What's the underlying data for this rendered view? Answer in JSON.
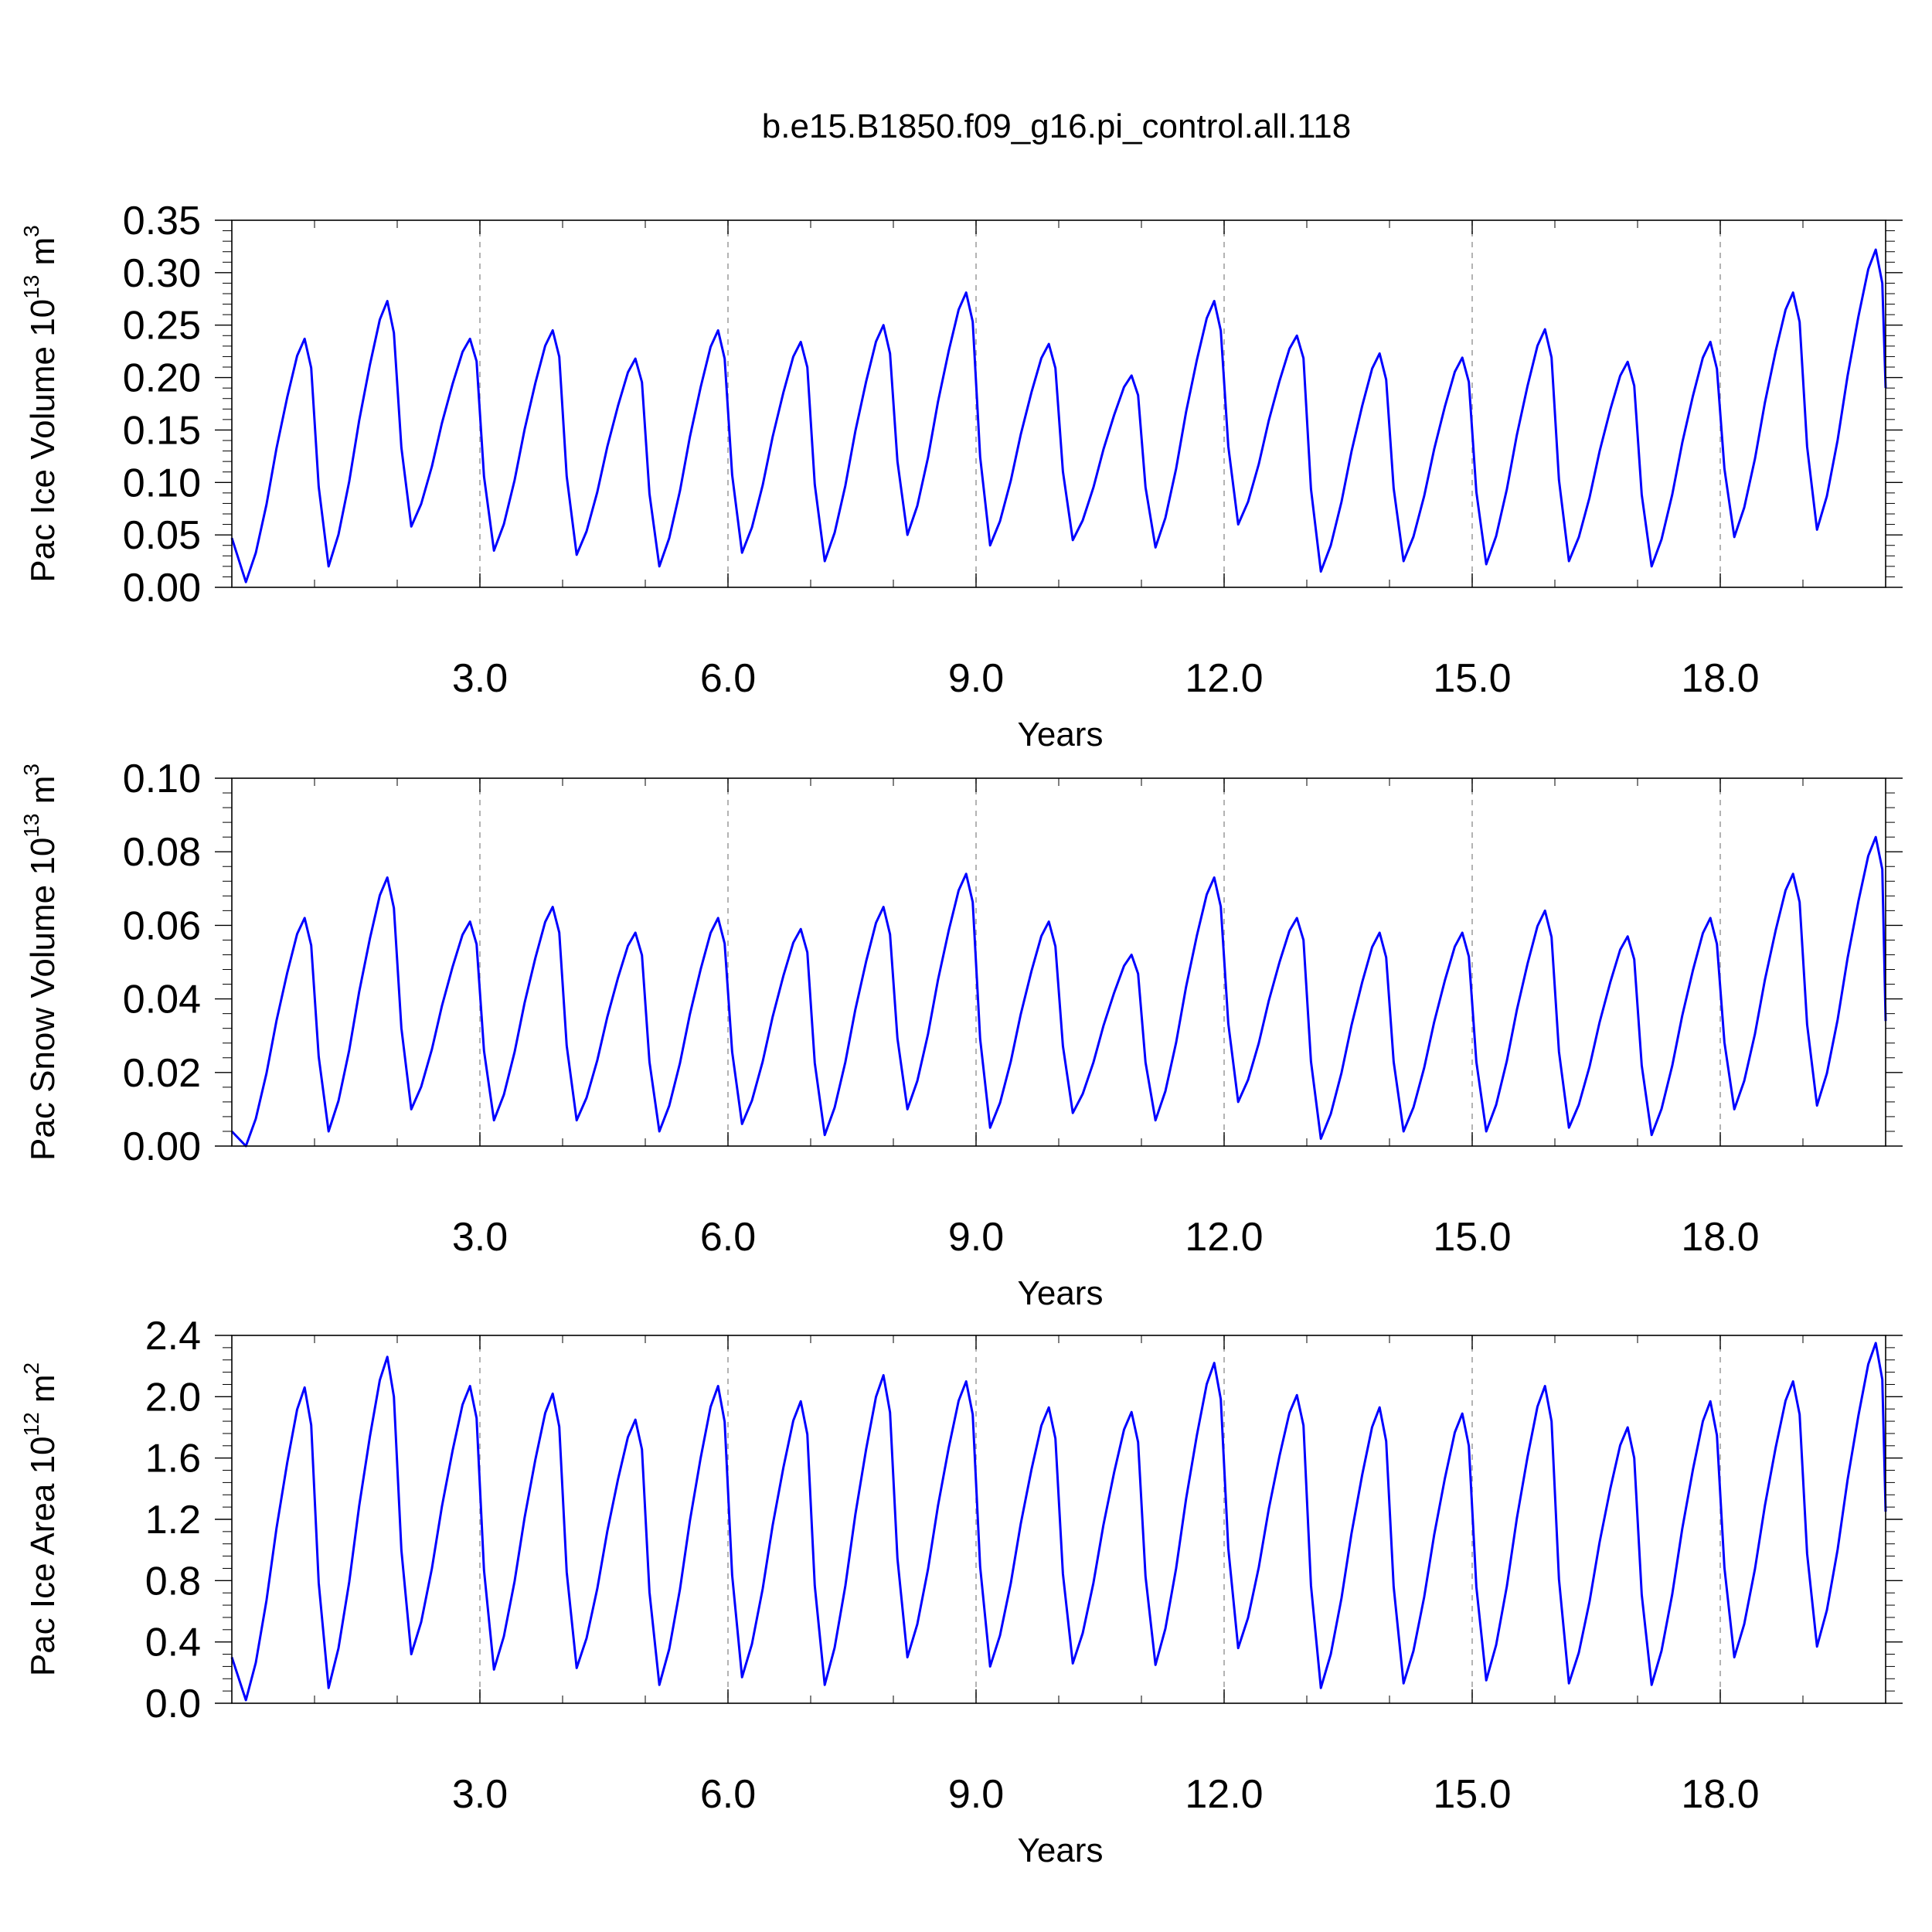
{
  "page_title": "b.e15.B1850.f09_g16.pi_control.all.118",
  "series_color": "#0000ff",
  "chart_data": [
    {
      "type": "line",
      "title": "b.e15.B1850.f09_g16.pi_control.all.118",
      "xlabel": "Years",
      "ylabel": "Pac Ice Volume 10",
      "ylabel_sup": "13",
      "ylabel_unit": " m",
      "ylabel_unit_sup": "3",
      "xlim": [
        0.0,
        20.0
      ],
      "ylim": [
        0.0,
        0.35
      ],
      "xticks": [
        3,
        6,
        9,
        12,
        15,
        18
      ],
      "xtick_labels": [
        "3.0",
        "6.0",
        "9.0",
        "12.0",
        "15.0",
        "18.0"
      ],
      "yticks": [
        0.0,
        0.05,
        0.1,
        0.15,
        0.2,
        0.25,
        0.3,
        0.35
      ],
      "ytick_labels": [
        "0.00",
        "0.05",
        "0.10",
        "0.15",
        "0.20",
        "0.25",
        "0.30",
        "0.35"
      ],
      "grid": "vertical dashed lines at major x ticks",
      "series": [
        {
          "peaks": [
            0.237,
            0.273,
            0.237,
            0.245,
            0.218,
            0.245,
            0.234,
            0.25,
            0.281,
            0.232,
            0.202,
            0.273,
            0.24,
            0.223,
            0.219,
            0.246,
            0.215,
            0.234,
            0.281,
            0.322
          ],
          "troughs": [
            0.005,
            0.02,
            0.058,
            0.035,
            0.031,
            0.02,
            0.033,
            0.025,
            0.05,
            0.04,
            0.045,
            0.038,
            0.06,
            0.015,
            0.025,
            0.022,
            0.025,
            0.02,
            0.048,
            0.055
          ],
          "start": 0.047,
          "end": 0.19
        }
      ]
    },
    {
      "type": "line",
      "xlabel": "Years",
      "ylabel": "Pac Snow Volume 10",
      "ylabel_sup": "13",
      "ylabel_unit": " m",
      "ylabel_unit_sup": "3",
      "xlim": [
        0.0,
        20.0
      ],
      "ylim": [
        0.0,
        0.1
      ],
      "xticks": [
        3,
        6,
        9,
        12,
        15,
        18
      ],
      "xtick_labels": [
        "3.0",
        "6.0",
        "9.0",
        "12.0",
        "15.0",
        "18.0"
      ],
      "yticks": [
        0.0,
        0.02,
        0.04,
        0.06,
        0.08,
        0.1
      ],
      "ytick_labels": [
        "0.00",
        "0.02",
        "0.04",
        "0.06",
        "0.08",
        "0.10"
      ],
      "grid": "vertical dashed lines at major x ticks",
      "series": [
        {
          "peaks": [
            0.062,
            0.073,
            0.061,
            0.065,
            0.058,
            0.062,
            0.059,
            0.065,
            0.074,
            0.061,
            0.052,
            0.073,
            0.062,
            0.058,
            0.058,
            0.064,
            0.057,
            0.062,
            0.074,
            0.084
          ],
          "troughs": [
            0.0,
            0.004,
            0.01,
            0.007,
            0.007,
            0.004,
            0.006,
            0.003,
            0.01,
            0.005,
            0.009,
            0.007,
            0.012,
            0.002,
            0.004,
            0.004,
            0.005,
            0.003,
            0.01,
            0.011
          ],
          "start": 0.004,
          "end": 0.034
        }
      ]
    },
    {
      "type": "line",
      "xlabel": "Years",
      "ylabel": "Pac Ice Area 10",
      "ylabel_sup": "12",
      "ylabel_unit": " m",
      "ylabel_unit_sup": "2",
      "xlim": [
        0.0,
        20.0
      ],
      "ylim": [
        0.0,
        2.4
      ],
      "xticks": [
        3,
        6,
        9,
        12,
        15,
        18
      ],
      "xtick_labels": [
        "3.0",
        "6.0",
        "9.0",
        "12.0",
        "15.0",
        "18.0"
      ],
      "yticks": [
        0.0,
        0.4,
        0.8,
        1.2,
        1.6,
        2.0,
        2.4
      ],
      "ytick_labels": [
        "0.0",
        "0.4",
        "0.8",
        "1.2",
        "1.6",
        "2.0",
        "2.4"
      ],
      "grid": "vertical dashed lines at major x ticks",
      "series": [
        {
          "peaks": [
            2.06,
            2.26,
            2.07,
            2.02,
            1.85,
            2.07,
            1.97,
            2.14,
            2.1,
            1.93,
            1.9,
            2.22,
            2.01,
            1.93,
            1.89,
            2.07,
            1.8,
            1.97,
            2.1,
            2.35
          ],
          "troughs": [
            0.02,
            0.1,
            0.32,
            0.22,
            0.23,
            0.12,
            0.17,
            0.12,
            0.3,
            0.24,
            0.26,
            0.25,
            0.36,
            0.1,
            0.13,
            0.15,
            0.13,
            0.12,
            0.3,
            0.37
          ],
          "start": 0.3,
          "end": 1.25
        }
      ]
    }
  ]
}
